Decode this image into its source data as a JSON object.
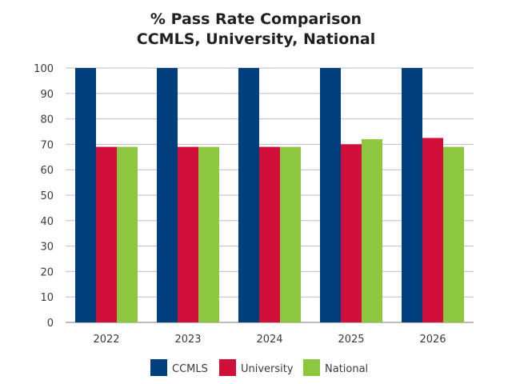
{
  "chart_data": {
    "type": "bar",
    "title": "% Pass Rate Comparison",
    "subtitle": "CCMLS, University, National",
    "categories": [
      "2022",
      "2023",
      "2024",
      "2025",
      "2026"
    ],
    "series": [
      {
        "name": "CCMLS",
        "color": "#003f7d",
        "values": [
          100,
          100,
          100,
          100,
          100
        ]
      },
      {
        "name": "University",
        "color": "#d0103a",
        "values": [
          69,
          69,
          69,
          70,
          72.5
        ]
      },
      {
        "name": "National",
        "color": "#8dc63f",
        "values": [
          69,
          69,
          69,
          72,
          69
        ]
      }
    ],
    "ylim": [
      0,
      100
    ],
    "yticks": [
      "0",
      "10",
      "20",
      "30",
      "40",
      "50",
      "60",
      "70",
      "80",
      "90",
      "100"
    ],
    "grid": true,
    "legend": "bottom-center"
  }
}
